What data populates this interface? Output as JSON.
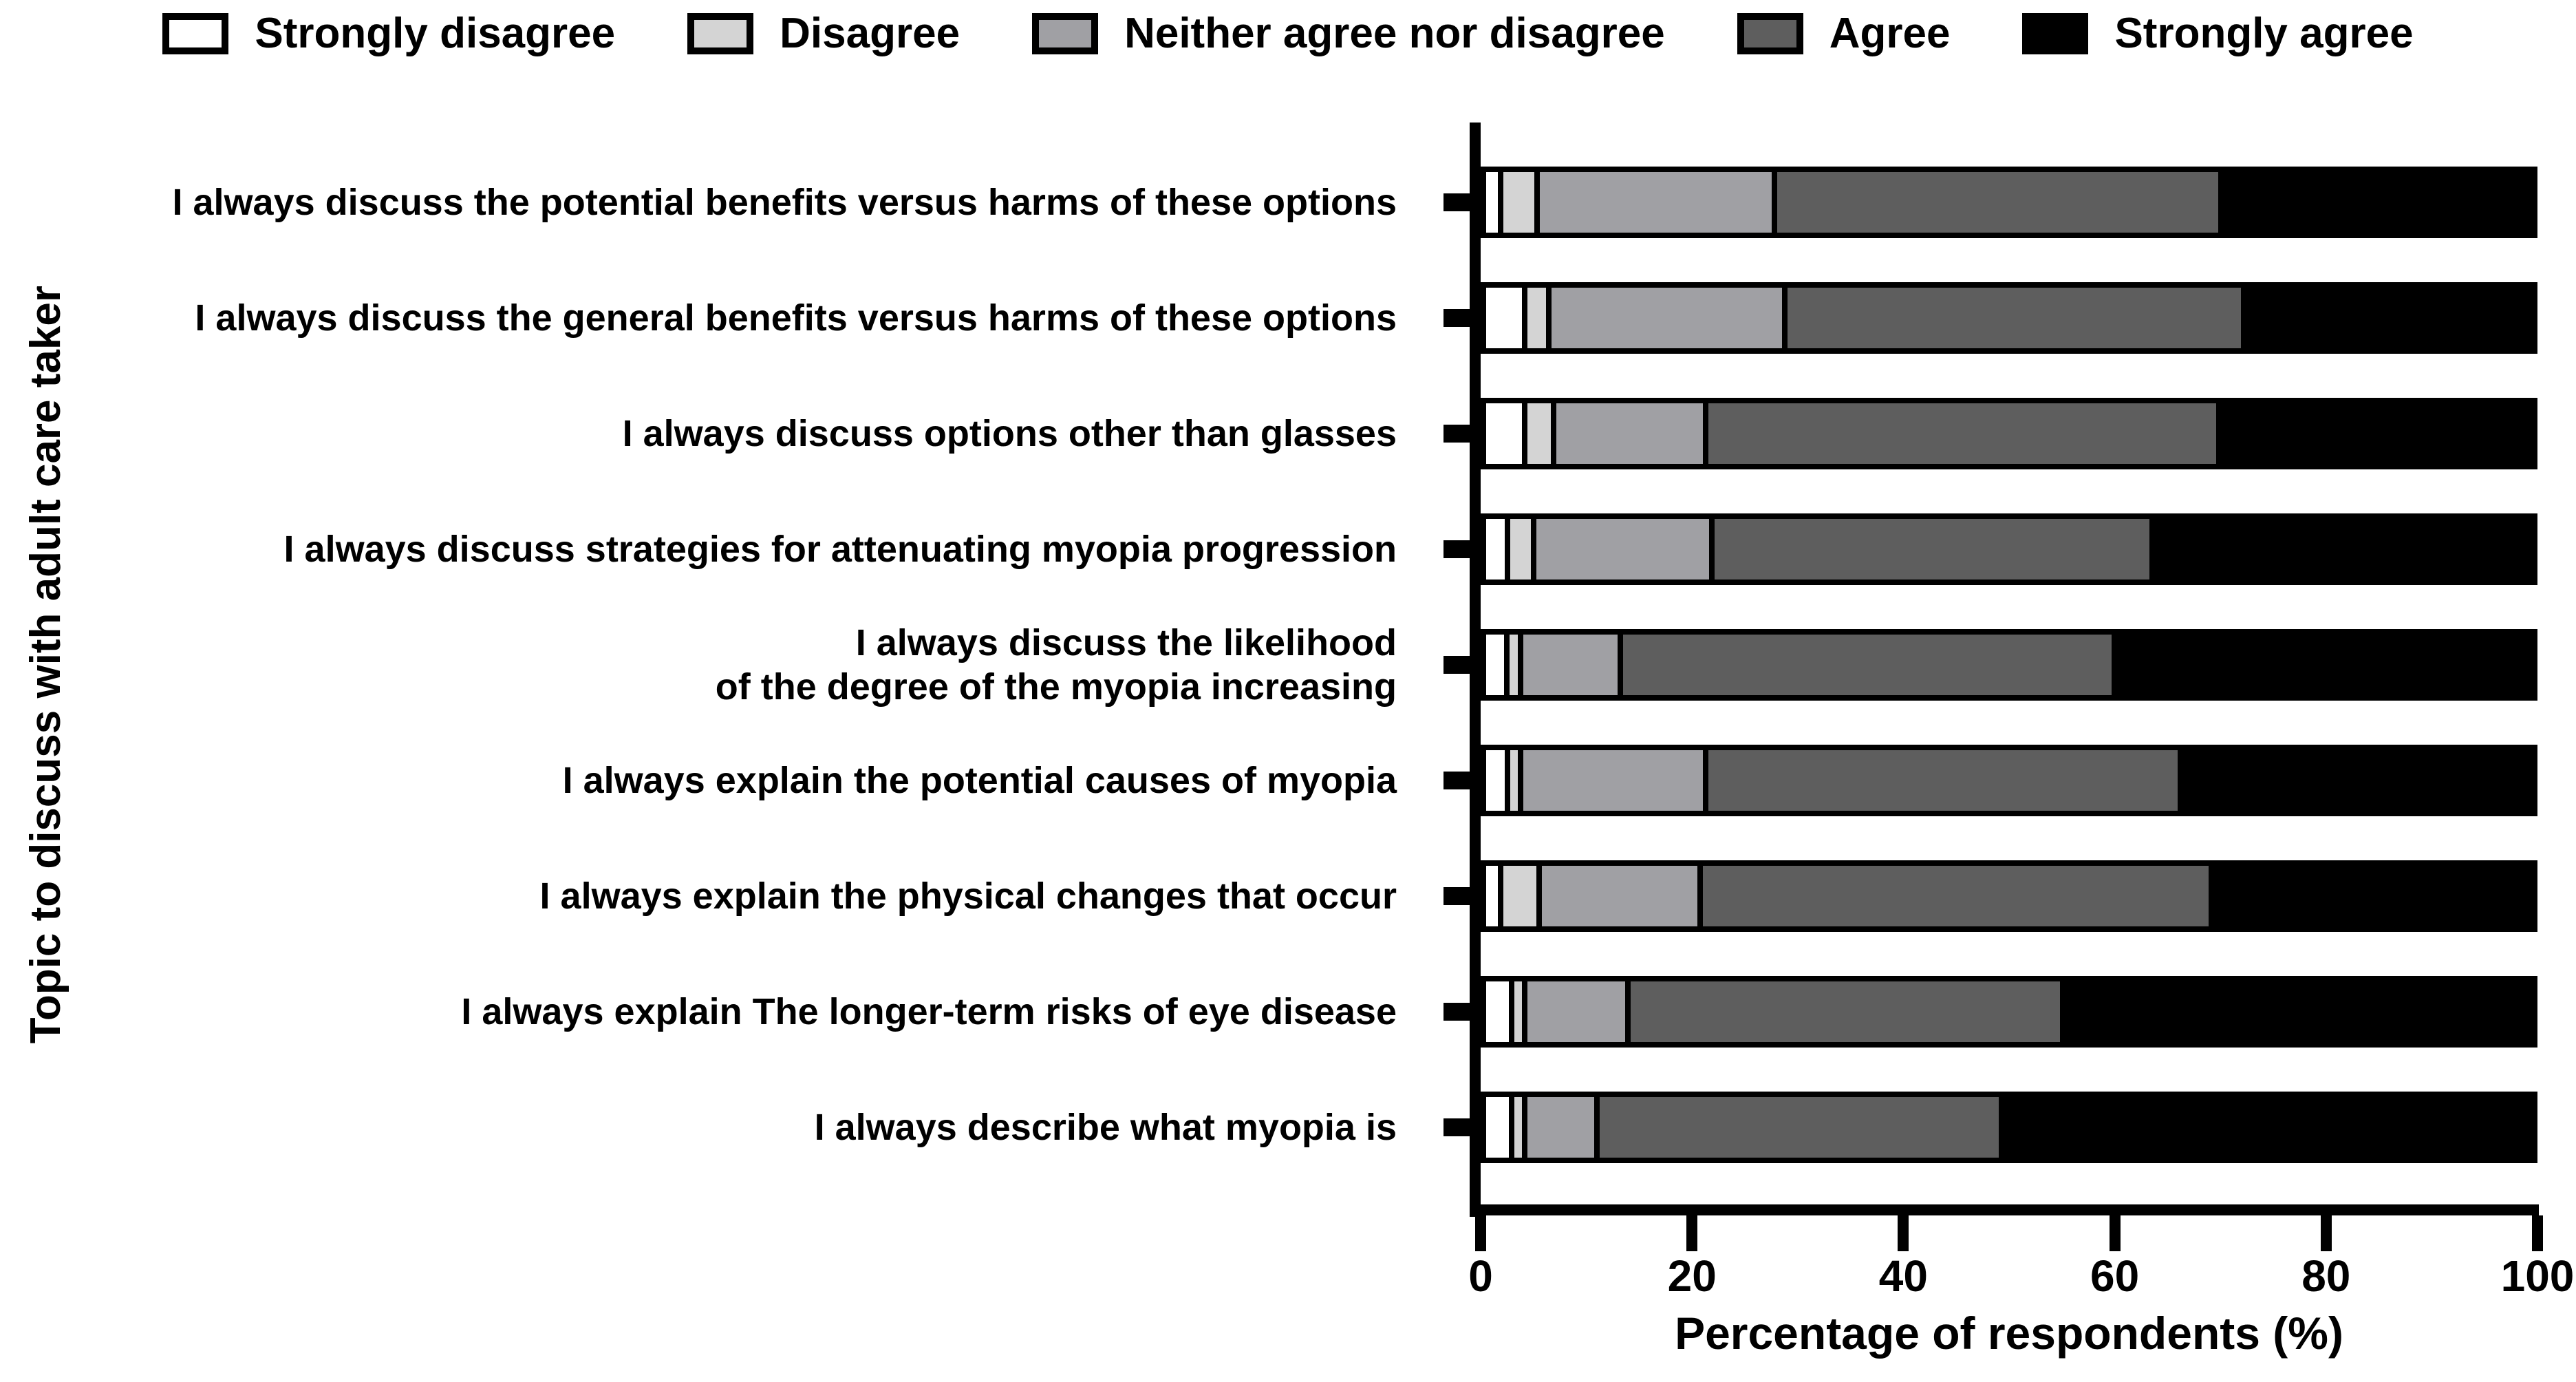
{
  "figure": {
    "background": "#ffffff",
    "axis_color": "#000000"
  },
  "legend": {
    "position": "top",
    "items": [
      {
        "label": "Strongly disagree",
        "color": "#ffffff"
      },
      {
        "label": "Disagree",
        "color": "#d4d4d4"
      },
      {
        "label": "Neither agree nor disagree",
        "color": "#a0a0a4"
      },
      {
        "label": "Agree",
        "color": "#5e5e5e"
      },
      {
        "label": "Strongly agree",
        "color": "#000000"
      }
    ]
  },
  "chart_data": {
    "type": "bar",
    "orientation": "horizontal",
    "stacked": true,
    "xlabel": "Percentage of respondents (%)",
    "ylabel": "Topic to discuss with adult care taker",
    "xlim": [
      0,
      100
    ],
    "xticks": [
      0,
      20,
      40,
      60,
      80,
      100
    ],
    "grid": false,
    "legend_position": "top",
    "categories": [
      "I always discuss the potential benefits versus harms of these options",
      "I always discuss the general benefits versus harms of these options",
      "I always discuss options other than glasses",
      "I always discuss strategies for attenuating myopia progression",
      "I always discuss the likelihood\nof the degree of the myopia increasing",
      "I always explain the potential causes of myopia",
      "I always explain the physical changes that occur",
      "I always explain The longer-term risks of eye disease",
      "I always describe what myopia is"
    ],
    "series": [
      {
        "name": "Strongly disagree",
        "color": "#ffffff",
        "values": [
          1.1,
          3.4,
          3.4,
          1.8,
          1.7,
          1.8,
          1.1,
          2.2,
          2.2
        ]
      },
      {
        "name": "Disagree",
        "color": "#d4d4d4",
        "values": [
          3.5,
          2.3,
          2.8,
          2.5,
          1.3,
          1.2,
          3.7,
          1.2,
          1.2
        ]
      },
      {
        "name": "Neither agree nor disagree",
        "color": "#a0a0a4",
        "values": [
          22.7,
          22.6,
          14.5,
          17.0,
          9.6,
          17.7,
          15.4,
          9.9,
          6.9
        ]
      },
      {
        "name": "Agree",
        "color": "#5e5e5e",
        "values": [
          42.7,
          43.9,
          49.1,
          42.1,
          47.2,
          45.4,
          48.9,
          41.6,
          38.7
        ]
      },
      {
        "name": "Strongly agree",
        "color": "#000000",
        "values": [
          30.0,
          27.8,
          30.2,
          36.6,
          40.2,
          33.9,
          30.9,
          45.1,
          51.0
        ]
      }
    ]
  }
}
